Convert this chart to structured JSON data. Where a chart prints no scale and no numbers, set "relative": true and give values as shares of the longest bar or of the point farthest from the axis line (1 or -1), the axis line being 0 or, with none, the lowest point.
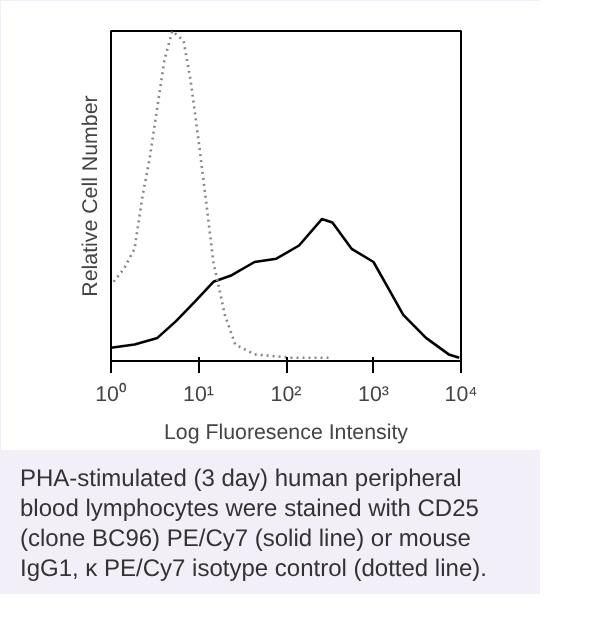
{
  "chart_data": {
    "type": "line",
    "relative": true,
    "log": "x",
    "xlabel": "Log Fluoresence Intensity",
    "ylabel": "Relative Cell Number",
    "xlim": [
      1,
      10000
    ],
    "xticks": [
      {
        "value": 1,
        "label": "10⁰"
      },
      {
        "value": 10,
        "label": "10¹"
      },
      {
        "value": 100,
        "label": "10²"
      },
      {
        "value": 1000,
        "label": "10³"
      },
      {
        "value": 10000,
        "label": "10⁴"
      }
    ],
    "tick_labels": "x",
    "grid": false,
    "marker": "none",
    "series": [
      {
        "color": "#000000",
        "line_style": "solid",
        "x": [
          1,
          1.86,
          3.39,
          5.5,
          9.1,
          14.8,
          24,
          43.7,
          77.6,
          141,
          257,
          339,
          562,
          1000,
          1479,
          2188,
          3981,
          7244,
          9550
        ],
        "values": [
          0.04,
          0.05,
          0.07,
          0.12,
          0.18,
          0.24,
          0.26,
          0.3,
          0.31,
          0.35,
          0.43,
          0.42,
          0.34,
          0.3,
          0.22,
          0.14,
          0.07,
          0.02,
          0.01
        ]
      },
      {
        "color": "#888888",
        "line_style": "dotted",
        "x": [
          1.07,
          1.41,
          1.86,
          2.29,
          2.75,
          3.39,
          4.07,
          5.01,
          6.76,
          8.13,
          10,
          12,
          14.8,
          20,
          26.3,
          43.7,
          115,
          309
        ],
        "values": [
          0.24,
          0.28,
          0.34,
          0.5,
          0.61,
          0.77,
          0.91,
          1.0,
          0.97,
          0.85,
          0.67,
          0.5,
          0.3,
          0.14,
          0.05,
          0.02,
          0.01,
          0.01
        ]
      }
    ],
    "annotations": [
      "PHA-stimulated (3 day) human peripheral blood lymphocytes were stained with CD25 (clone BC96) PE/Cy7 (solid line) or mouse IgG1, κ PE/Cy7 isotype control (dotted line)."
    ]
  }
}
